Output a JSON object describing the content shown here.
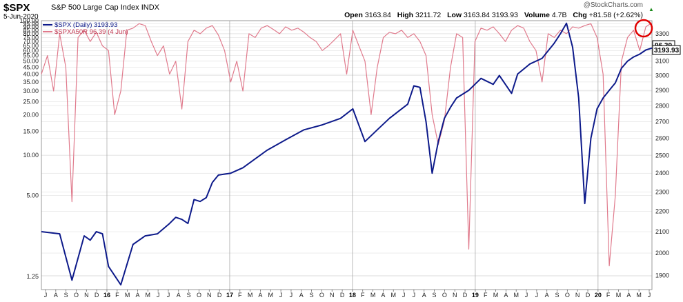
{
  "header": {
    "symbol": "$SPX",
    "name": "S&P 500 Large Cap Index",
    "exchange": "INDX",
    "date": "5-Jun-2020",
    "brand": "@StockCharts.com",
    "open_label": "Open",
    "open": "3163.84",
    "high_label": "High",
    "high": "3211.72",
    "low_label": "Low",
    "low": "3163.84",
    "close": "3193.93",
    "volume_label": "Volume",
    "volume": "4.7B",
    "chg_label": "Chg",
    "chg": "+81.58 (+2.62%)",
    "chg_arrow": "▲"
  },
  "colors": {
    "spx": "#0d1a8a",
    "breadth": "#e07a8c",
    "grid": "#d9d9d9",
    "highlight_circle": "#e00000"
  },
  "chart_data": {
    "type": "line",
    "left_axis": {
      "scale": "log",
      "ticks": [
        "100.00",
        "95.00",
        "90.00",
        "85.00",
        "80.00",
        "75.00",
        "70.00",
        "65.00",
        "60.00",
        "55.00",
        "50.00",
        "45.00",
        "40.00",
        "35.00",
        "30.00",
        "25.00",
        "20.00",
        "15.00",
        "10.00",
        "5.00",
        "1.25"
      ],
      "ylim": [
        1,
        100
      ]
    },
    "right_axis": {
      "scale": "log",
      "ticks": [
        "3300",
        "3200",
        "3100",
        "3000",
        "2900",
        "2800",
        "2700",
        "2600",
        "2500",
        "2400",
        "2300",
        "2200",
        "2100",
        "2000",
        "1900"
      ],
      "ylim": [
        1840,
        3400
      ]
    },
    "x_labels": [
      "J",
      "A",
      "S",
      "O",
      "N",
      "D",
      "16",
      "F",
      "M",
      "A",
      "M",
      "J",
      "J",
      "A",
      "S",
      "O",
      "N",
      "D",
      "17",
      "F",
      "M",
      "A",
      "M",
      "J",
      "J",
      "A",
      "S",
      "O",
      "N",
      "D",
      "18",
      "F",
      "M",
      "A",
      "M",
      "J",
      "J",
      "A",
      "S",
      "O",
      "N",
      "D",
      "19",
      "F",
      "M",
      "A",
      "M",
      "J",
      "J",
      "A",
      "S",
      "O",
      "N",
      "D",
      "20",
      "F",
      "M",
      "A",
      "M",
      "J"
    ],
    "year_labels": [
      "16",
      "17",
      "18",
      "19",
      "20"
    ],
    "legend": [
      {
        "name": "$SPX (Daily) 3193.93",
        "color": "#0d1a8a"
      },
      {
        "name": "$SPXA50R 96.39 (4 Jun)",
        "color": "#e07a8c"
      }
    ],
    "last_value_tags": {
      "breadth": "96.39",
      "spx": "3193.93"
    },
    "series": [
      {
        "name": "$SPX",
        "axis": "right",
        "x": [
          0,
          3,
          5,
          7,
          8,
          9,
          10,
          11,
          13,
          15,
          17,
          19,
          21,
          22,
          23,
          24,
          25,
          26,
          27,
          28,
          29,
          31,
          33,
          35,
          37,
          40,
          43,
          46,
          49,
          51,
          53,
          55,
          57,
          59,
          60,
          61,
          62,
          63,
          64,
          65,
          66,
          67,
          68,
          70,
          72,
          74,
          75,
          77,
          78,
          80,
          82,
          84,
          85,
          86,
          87,
          88,
          89,
          90,
          91,
          92,
          93,
          94,
          95,
          96,
          97,
          98,
          99,
          100
        ],
        "values": [
          2100,
          2090,
          1880,
          2080,
          2060,
          2100,
          2090,
          1940,
          1860,
          2040,
          2080,
          2090,
          2140,
          2170,
          2160,
          2140,
          2260,
          2250,
          2270,
          2350,
          2390,
          2400,
          2430,
          2480,
          2530,
          2590,
          2650,
          2680,
          2720,
          2780,
          2580,
          2650,
          2720,
          2780,
          2810,
          2930,
          2920,
          2700,
          2400,
          2580,
          2720,
          2790,
          2850,
          2900,
          2980,
          2940,
          3000,
          2880,
          3010,
          3080,
          3120,
          3230,
          3300,
          3380,
          3200,
          2850,
          2240,
          2600,
          2780,
          2850,
          2900,
          2950,
          3050,
          3100,
          3130,
          3150,
          3180,
          3193.93
        ]
      },
      {
        "name": "$SPXA50R",
        "axis": "left",
        "x": [
          0,
          1,
          2,
          3,
          4,
          5,
          6,
          7,
          8,
          9,
          10,
          11,
          12,
          13,
          14,
          15,
          16,
          17,
          18,
          19,
          20,
          21,
          22,
          23,
          24,
          25,
          26,
          27,
          28,
          29,
          30,
          31,
          32,
          33,
          34,
          35,
          36,
          37,
          38,
          39,
          40,
          41,
          42,
          43,
          44,
          45,
          46,
          47,
          48,
          49,
          50,
          51,
          52,
          53,
          54,
          55,
          56,
          57,
          58,
          59,
          60,
          61,
          62,
          63,
          64,
          65,
          66,
          67,
          68,
          69,
          70,
          71,
          72,
          73,
          74,
          75,
          76,
          77,
          78,
          79,
          80,
          81,
          82,
          83,
          84,
          85,
          86,
          87,
          88,
          89,
          90,
          91,
          92,
          93,
          94,
          95,
          96,
          97,
          98,
          99,
          100
        ],
        "values": [
          40,
          55,
          30,
          80,
          45,
          4.5,
          75,
          85,
          70,
          82,
          65,
          60,
          20,
          30,
          85,
          88,
          95,
          92,
          70,
          55,
          65,
          40,
          50,
          22,
          70,
          85,
          80,
          88,
          92,
          78,
          60,
          35,
          50,
          30,
          80,
          75,
          88,
          92,
          86,
          80,
          90,
          85,
          88,
          82,
          75,
          70,
          60,
          65,
          72,
          80,
          40,
          85,
          65,
          50,
          20,
          45,
          75,
          82,
          80,
          85,
          75,
          80,
          70,
          55,
          20,
          12,
          18,
          45,
          80,
          75,
          2,
          70,
          88,
          85,
          90,
          80,
          70,
          85,
          92,
          88,
          70,
          60,
          35,
          80,
          75,
          85,
          80,
          90,
          88,
          92,
          95,
          75,
          40,
          1.5,
          5,
          50,
          75,
          85,
          60,
          90,
          96.39
        ]
      }
    ]
  }
}
